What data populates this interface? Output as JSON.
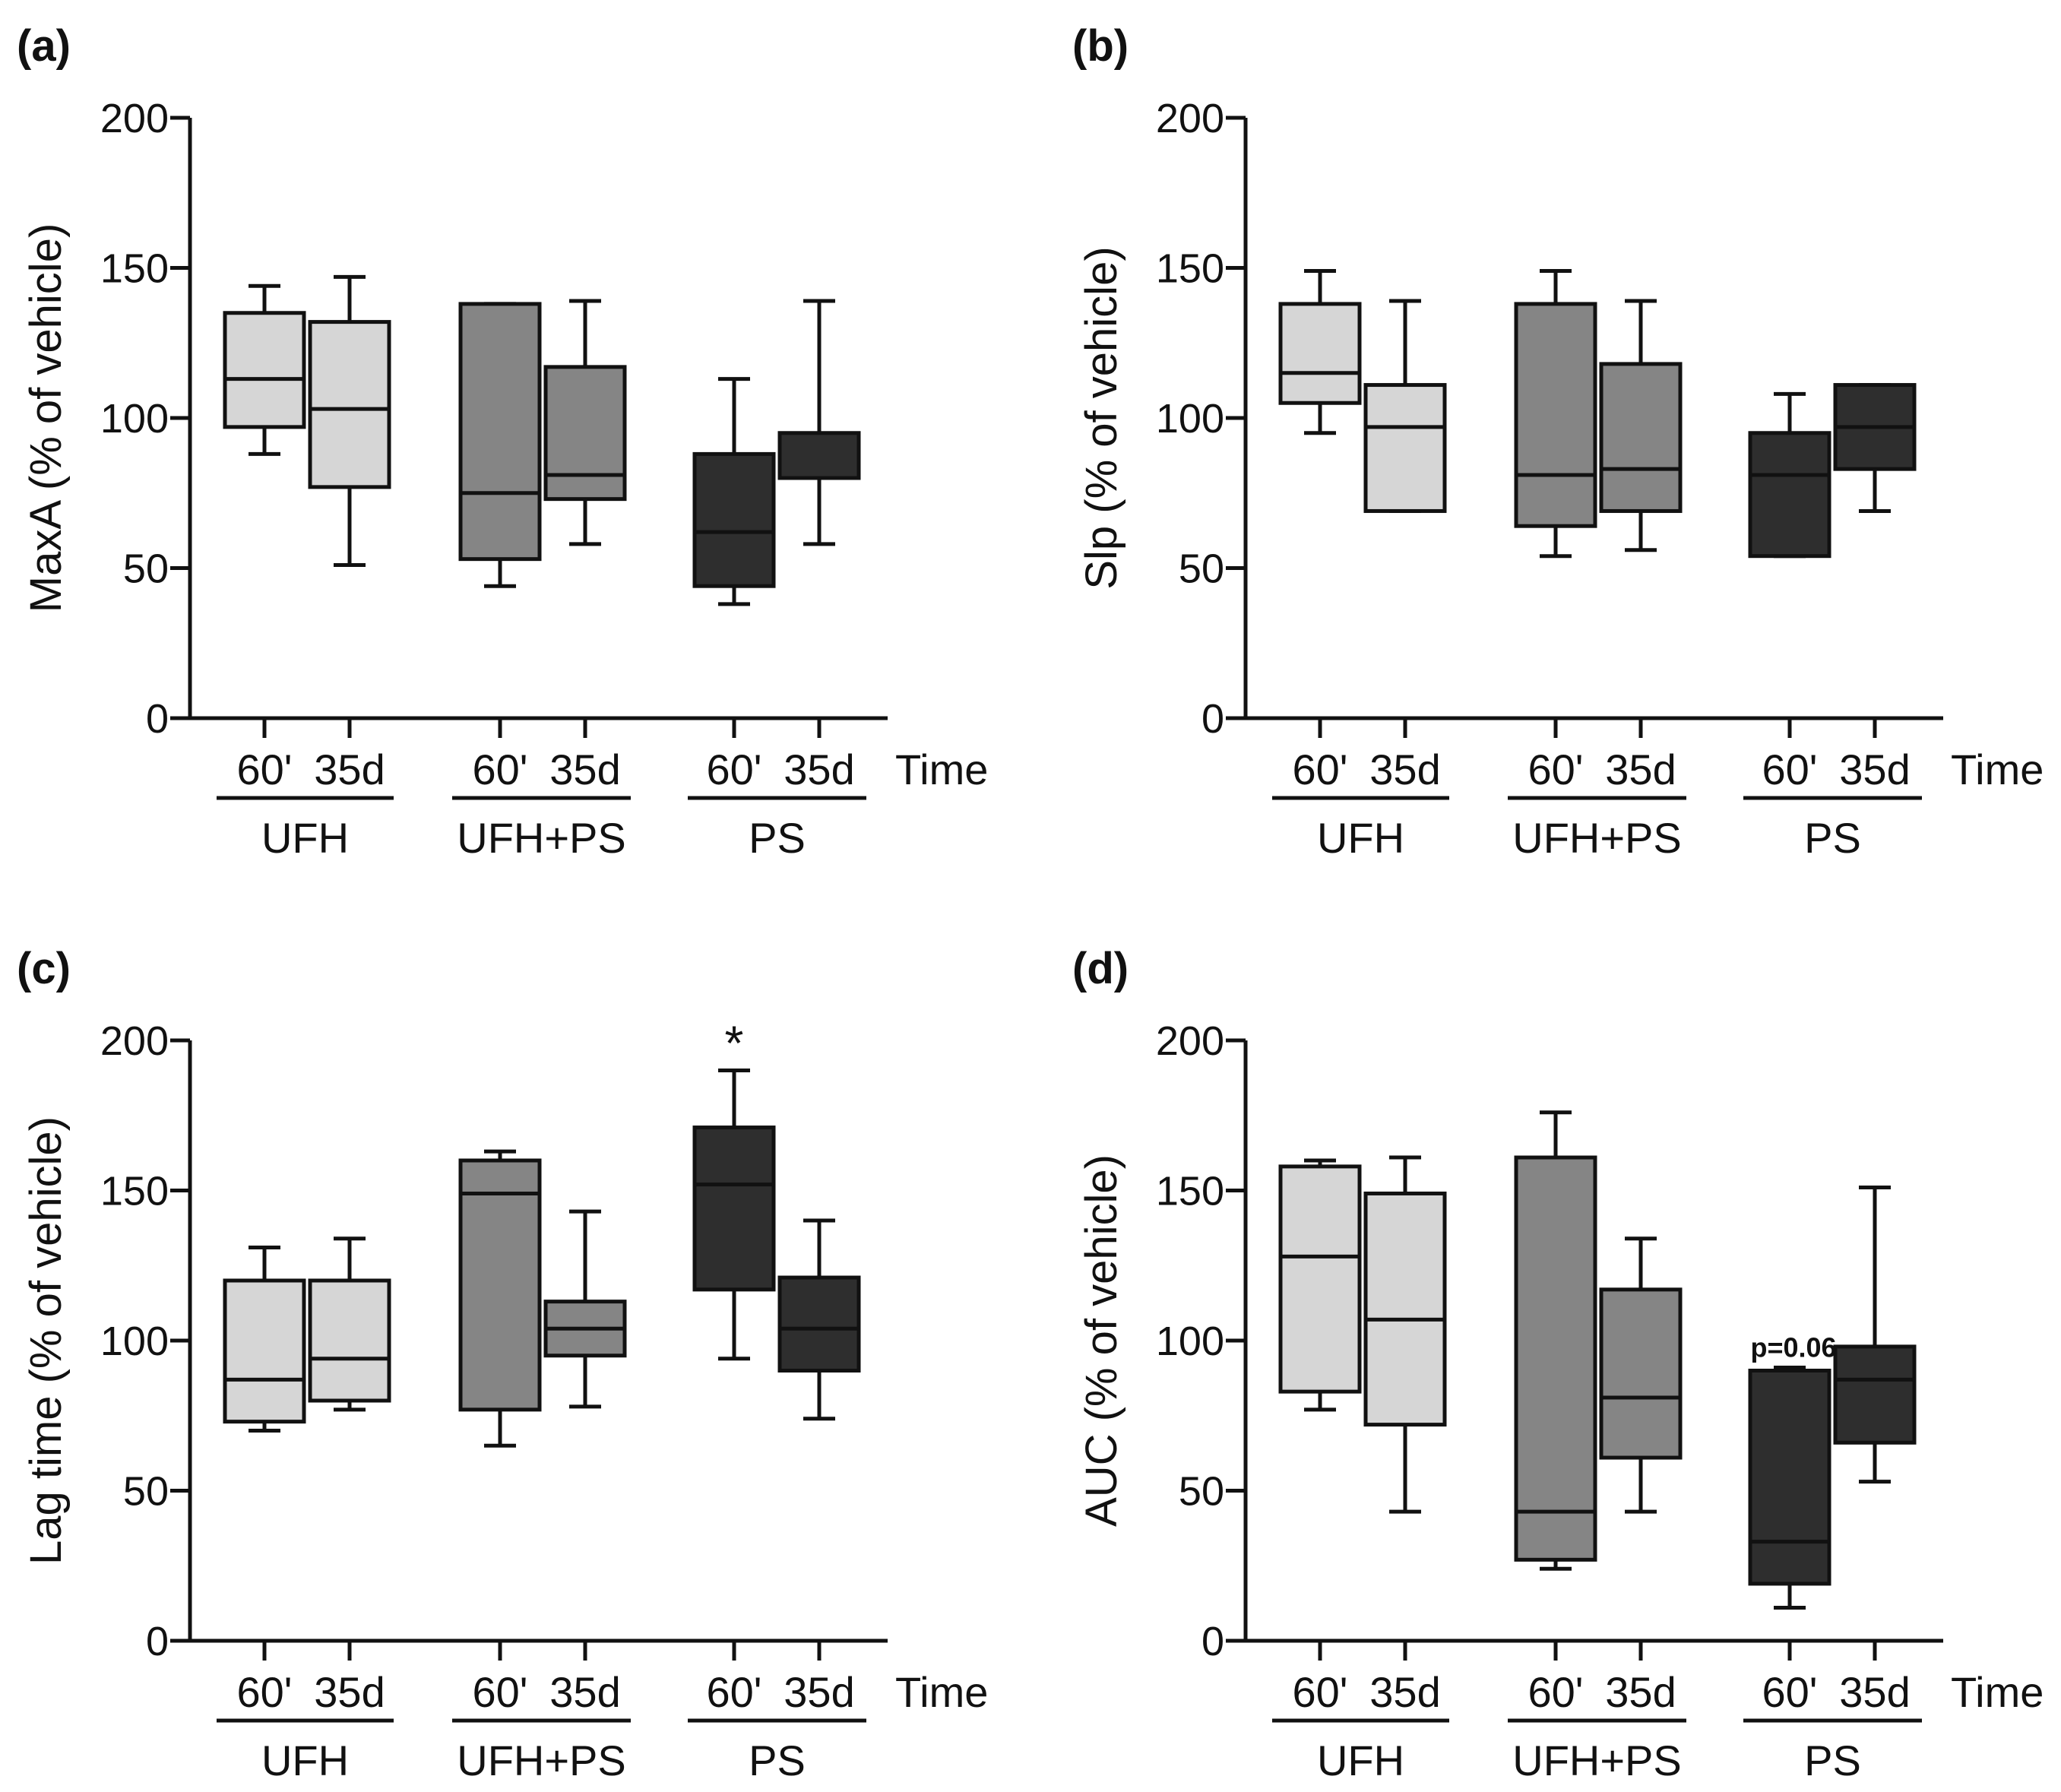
{
  "colors": {
    "UFH": "#d6d6d6",
    "UFH+PS": "#858585",
    "PS": "#2e2e2e",
    "stroke": "#111111"
  },
  "chart_data": [
    {
      "type": "box",
      "panel_label": "(a)",
      "ylabel": "MaxA (% of vehicle)",
      "ylim": [
        0,
        200
      ],
      "yticks": [
        0,
        50,
        100,
        150,
        200
      ],
      "time_label": "Time",
      "groups": [
        "UFH",
        "UFH+PS",
        "PS"
      ],
      "conditions": [
        "60'",
        "35d"
      ],
      "boxes": [
        {
          "group": "UFH",
          "condition": "60'",
          "min": 88,
          "q1": 97,
          "median": 113,
          "q3": 135,
          "max": 144
        },
        {
          "group": "UFH",
          "condition": "35d",
          "min": 51,
          "q1": 77,
          "median": 103,
          "q3": 132,
          "max": 147
        },
        {
          "group": "UFH+PS",
          "condition": "60'",
          "min": 44,
          "q1": 53,
          "median": 75,
          "q3": 138,
          "max": 138
        },
        {
          "group": "UFH+PS",
          "condition": "35d",
          "min": 58,
          "q1": 73,
          "median": 81,
          "q3": 117,
          "max": 139
        },
        {
          "group": "PS",
          "condition": "60'",
          "min": 38,
          "q1": 44,
          "median": 62,
          "q3": 88,
          "max": 113
        },
        {
          "group": "PS",
          "condition": "35d",
          "min": 58,
          "q1": 80,
          "median": 80,
          "q3": 95,
          "max": 139
        }
      ],
      "annotations": []
    },
    {
      "type": "box",
      "panel_label": "(b)",
      "ylabel": "Slp (% of vehicle)",
      "ylim": [
        0,
        200
      ],
      "yticks": [
        0,
        50,
        100,
        150,
        200
      ],
      "time_label": "Time",
      "groups": [
        "UFH",
        "UFH+PS",
        "PS"
      ],
      "conditions": [
        "60'",
        "35d"
      ],
      "boxes": [
        {
          "group": "UFH",
          "condition": "60'",
          "min": 95,
          "q1": 105,
          "median": 115,
          "q3": 138,
          "max": 149
        },
        {
          "group": "UFH",
          "condition": "35d",
          "min": 69,
          "q1": 69,
          "median": 97,
          "q3": 111,
          "max": 139
        },
        {
          "group": "UFH+PS",
          "condition": "60'",
          "min": 54,
          "q1": 64,
          "median": 81,
          "q3": 138,
          "max": 149
        },
        {
          "group": "UFH+PS",
          "condition": "35d",
          "min": 56,
          "q1": 69,
          "median": 83,
          "q3": 118,
          "max": 139
        },
        {
          "group": "PS",
          "condition": "60'",
          "min": 54,
          "q1": 54,
          "median": 81,
          "q3": 95,
          "max": 108
        },
        {
          "group": "PS",
          "condition": "35d",
          "min": 69,
          "q1": 83,
          "median": 97,
          "q3": 111,
          "max": 111
        }
      ],
      "annotations": []
    },
    {
      "type": "box",
      "panel_label": "(c)",
      "ylabel": "Lag time (% of vehicle)",
      "ylim": [
        0,
        200
      ],
      "yticks": [
        0,
        50,
        100,
        150,
        200
      ],
      "time_label": "Time",
      "groups": [
        "UFH",
        "UFH+PS",
        "PS"
      ],
      "conditions": [
        "60'",
        "35d"
      ],
      "boxes": [
        {
          "group": "UFH",
          "condition": "60'",
          "min": 70,
          "q1": 73,
          "median": 87,
          "q3": 120,
          "max": 131
        },
        {
          "group": "UFH",
          "condition": "35d",
          "min": 77,
          "q1": 80,
          "median": 94,
          "q3": 120,
          "max": 134
        },
        {
          "group": "UFH+PS",
          "condition": "60'",
          "min": 65,
          "q1": 77,
          "median": 149,
          "q3": 160,
          "max": 163
        },
        {
          "group": "UFH+PS",
          "condition": "35d",
          "min": 78,
          "q1": 95,
          "median": 104,
          "q3": 113,
          "max": 143
        },
        {
          "group": "PS",
          "condition": "60'",
          "min": 94,
          "q1": 117,
          "median": 152,
          "q3": 171,
          "max": 190
        },
        {
          "group": "PS",
          "condition": "35d",
          "min": 74,
          "q1": 90,
          "median": 104,
          "q3": 121,
          "max": 140
        }
      ],
      "annotations": [
        {
          "group": "PS",
          "condition": "60'",
          "text": "*"
        }
      ]
    },
    {
      "type": "box",
      "panel_label": "(d)",
      "ylabel": "AUC (% of vehicle)",
      "ylim": [
        0,
        200
      ],
      "yticks": [
        0,
        50,
        100,
        150,
        200
      ],
      "time_label": "Time",
      "groups": [
        "UFH",
        "UFH+PS",
        "PS"
      ],
      "conditions": [
        "60'",
        "35d"
      ],
      "boxes": [
        {
          "group": "UFH",
          "condition": "60'",
          "min": 77,
          "q1": 83,
          "median": 128,
          "q3": 158,
          "max": 160
        },
        {
          "group": "UFH",
          "condition": "35d",
          "min": 43,
          "q1": 72,
          "median": 107,
          "q3": 149,
          "max": 161
        },
        {
          "group": "UFH+PS",
          "condition": "60'",
          "min": 24,
          "q1": 27,
          "median": 43,
          "q3": 161,
          "max": 176
        },
        {
          "group": "UFH+PS",
          "condition": "35d",
          "min": 43,
          "q1": 61,
          "median": 81,
          "q3": 117,
          "max": 134
        },
        {
          "group": "PS",
          "condition": "60'",
          "min": 11,
          "q1": 19,
          "median": 33,
          "q3": 90,
          "max": 91
        },
        {
          "group": "PS",
          "condition": "35d",
          "min": 53,
          "q1": 66,
          "median": 87,
          "q3": 98,
          "max": 151
        }
      ],
      "annotations": [
        {
          "group": "PS",
          "condition": "60'",
          "text": "p=0.06"
        }
      ]
    }
  ]
}
